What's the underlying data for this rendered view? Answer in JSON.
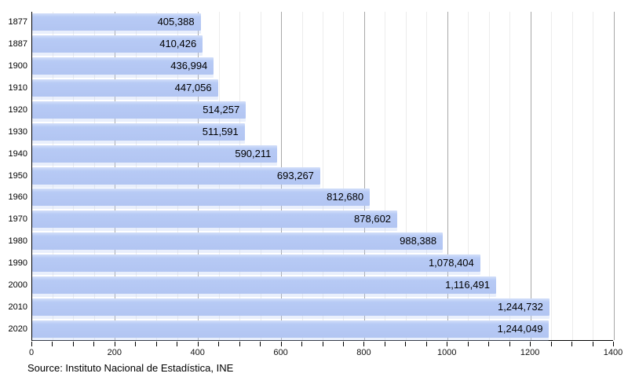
{
  "chart_data": {
    "type": "bar",
    "orientation": "horizontal",
    "title": "",
    "xlabel": "",
    "ylabel": "",
    "categories": [
      "1877",
      "1887",
      "1900",
      "1910",
      "1920",
      "1930",
      "1940",
      "1950",
      "1960",
      "1970",
      "1980",
      "1990",
      "2000",
      "2010",
      "2020"
    ],
    "values": [
      405388,
      410426,
      436994,
      447056,
      514257,
      511591,
      590211,
      693267,
      812680,
      878602,
      988388,
      1078404,
      1116491,
      1244732,
      1244049
    ],
    "value_labels": [
      "405,388",
      "410,426",
      "436,994",
      "447,056",
      "514,257",
      "511,591",
      "590,211",
      "693,267",
      "812,680",
      "878,602",
      "988,388",
      "1,078,404",
      "1,116,491",
      "1,244,732",
      "1,244,049"
    ],
    "axis_unit": "thousands",
    "xlim": [
      0,
      1400
    ],
    "x_major_tick_step": 200,
    "x_minor_tick_step": 50,
    "x_tick_labels": [
      "0",
      "200",
      "400",
      "600",
      "800",
      "1000",
      "1200",
      "1400"
    ],
    "grid": "vertical-minor-and-major",
    "legend": "none",
    "colors": {
      "bar_fill": "#b5c8f4",
      "bar_highlight": "#d2def9",
      "minor_grid": "#ececec",
      "major_grid": "#a8a8a8",
      "axis": "#000000",
      "text": "#000000",
      "background": "#ffffff"
    }
  },
  "source_text": "Source: Instituto Nacional de Estadística, INE"
}
